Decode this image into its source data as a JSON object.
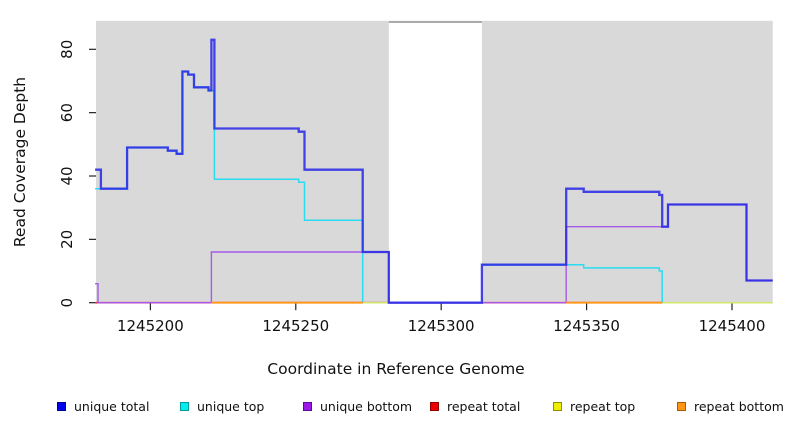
{
  "chart_data": {
    "type": "line",
    "style": "step-after",
    "title": "",
    "xlabel": "Coordinate in Reference Genome",
    "ylabel": "Read Coverage Depth",
    "xlim": [
      1245181.3,
      1245414
    ],
    "ylim": [
      0,
      89
    ],
    "x_ticks": [
      1245200,
      1245250,
      1245300,
      1245350,
      1245400
    ],
    "y_ticks": [
      0,
      20,
      40,
      60,
      80
    ],
    "panel_background": "#d9d9d9",
    "grid": false,
    "legend_position": "bottom",
    "no_data_gap": {
      "x_start": 1245282,
      "x_end": 1245314
    },
    "series": [
      {
        "name": "unique total",
        "line_color": "#2b2be6",
        "line_width": 2.3,
        "line_opacity": 0.88,
        "legend_fill": "#0000ee",
        "legend_border": "#000090",
        "segments": [
          [
            [
              1245181,
              42
            ],
            [
              1245183,
              36
            ],
            [
              1245192,
              49
            ],
            [
              1245206,
              48
            ],
            [
              1245209,
              47
            ],
            [
              1245211,
              73
            ],
            [
              1245213,
              72
            ],
            [
              1245215,
              68
            ],
            [
              1245220,
              67
            ],
            [
              1245221,
              83
            ],
            [
              1245222,
              55
            ],
            [
              1245251,
              54
            ],
            [
              1245253,
              42
            ],
            [
              1245273,
              16
            ],
            [
              1245282,
              0
            ],
            [
              1245314,
              12
            ],
            [
              1245343,
              36
            ],
            [
              1245349,
              35
            ],
            [
              1245375,
              34
            ],
            [
              1245376,
              24
            ],
            [
              1245378,
              31
            ],
            [
              1245405,
              7
            ],
            [
              1245414,
              7
            ]
          ]
        ]
      },
      {
        "name": "unique top",
        "line_color": "#2adcf2",
        "line_width": 1.5,
        "line_opacity": 1,
        "legend_fill": "#00eeee",
        "legend_border": "#009a9a",
        "segments": [
          [
            [
              1245181,
              36
            ],
            [
              1245192,
              49
            ],
            [
              1245206,
              48
            ],
            [
              1245209,
              47
            ],
            [
              1245211,
              73
            ],
            [
              1245213,
              72
            ],
            [
              1245215,
              68
            ],
            [
              1245220,
              67
            ],
            [
              1245222,
              39
            ],
            [
              1245251,
              38
            ],
            [
              1245253,
              26
            ],
            [
              1245273,
              0
            ],
            [
              1245282,
              0
            ]
          ],
          [
            [
              1245314,
              12
            ],
            [
              1245349,
              11
            ],
            [
              1245375,
              10
            ],
            [
              1245376,
              0
            ],
            [
              1245414,
              0
            ]
          ]
        ]
      },
      {
        "name": "unique bottom",
        "line_color": "#a55ae8",
        "line_width": 1.4,
        "line_opacity": 1,
        "legend_fill": "#9b1ae8",
        "legend_border": "#5e0a94",
        "segments": [
          [
            [
              1245181,
              6
            ],
            [
              1245182,
              0
            ],
            [
              1245221,
              16
            ],
            [
              1245282,
              0
            ],
            [
              1245343,
              24
            ],
            [
              1245378,
              31
            ],
            [
              1245405,
              7
            ],
            [
              1245414,
              7
            ]
          ]
        ]
      },
      {
        "name": "repeat total",
        "line_color": "#ee2236",
        "line_width": 1.7,
        "line_opacity": 1,
        "legend_fill": "#ee0000",
        "legend_border": "#900000",
        "segments": [
          [
            [
              1245181,
              0
            ],
            [
              1245282,
              0
            ]
          ],
          [
            [
              1245314,
              0
            ],
            [
              1245376,
              0
            ]
          ]
        ]
      },
      {
        "name": "repeat top",
        "line_color": "#cfe86a",
        "line_width": 1.5,
        "line_opacity": 1,
        "legend_fill": "#eeee00",
        "legend_border": "#8f8f00",
        "segments": [
          [
            [
              1245273,
              0
            ],
            [
              1245282,
              0
            ]
          ],
          [
            [
              1245376,
              0
            ],
            [
              1245414,
              0
            ]
          ]
        ]
      },
      {
        "name": "repeat bottom",
        "line_color": "#ff9415",
        "line_width": 1.8,
        "line_opacity": 1,
        "legend_fill": "#ff9415",
        "legend_border": "#a05e00",
        "segments": [
          [
            [
              1245221,
              0
            ],
            [
              1245273,
              0
            ]
          ],
          [
            [
              1245343,
              0
            ],
            [
              1245376,
              0
            ]
          ]
        ]
      }
    ],
    "draw_order": [
      "unique top",
      "repeat total",
      "unique bottom",
      "repeat top",
      "repeat bottom",
      "unique total"
    ]
  }
}
